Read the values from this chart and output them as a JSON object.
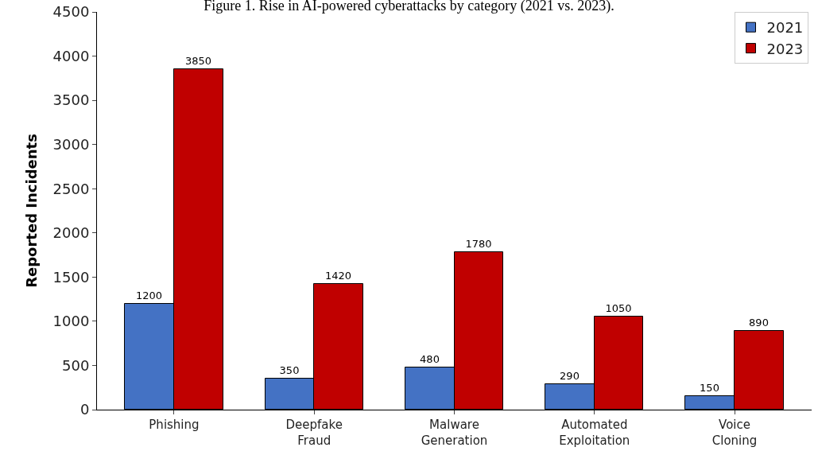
{
  "chart_data": {
    "type": "bar",
    "title": "Figure 1. Rise in AI-powered cyberattacks by category (2021 vs. 2023).",
    "ylabel": "Reported Incidents",
    "categories": [
      "Phishing",
      "Deepfake\nFraud",
      "Malware\nGeneration",
      "Automated\nExploitation",
      "Voice\nCloning"
    ],
    "series": [
      {
        "name": "2021",
        "color": "#4472c4",
        "values": [
          1200,
          350,
          480,
          290,
          150
        ]
      },
      {
        "name": "2023",
        "color": "#c00000",
        "values": [
          3850,
          1420,
          1780,
          1050,
          890
        ]
      }
    ],
    "ylim": [
      0,
      4500
    ],
    "yticks": [
      0,
      500,
      1000,
      1500,
      2000,
      2500,
      3000,
      3500,
      4000,
      4500
    ],
    "data_labels": true,
    "legend": "top right"
  }
}
